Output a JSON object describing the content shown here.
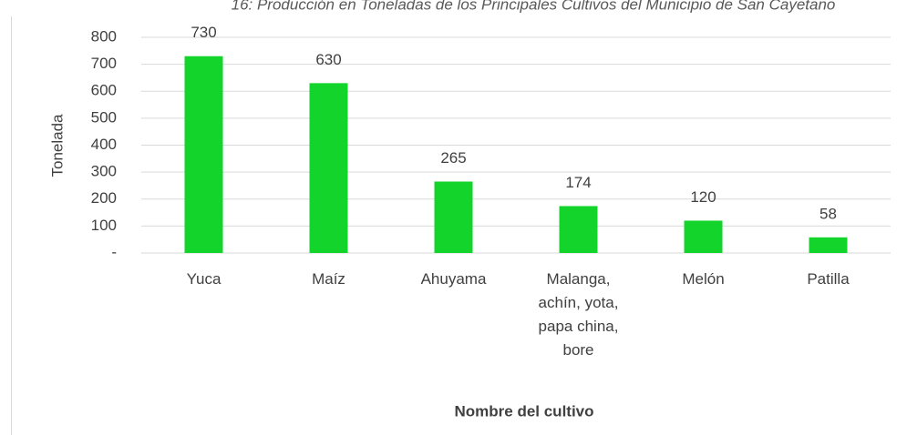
{
  "chart_data": {
    "type": "bar",
    "title": "16: Producción en Toneladas de los Principales Cultivos del Municipio de San Cayetano",
    "categories": [
      "Yuca",
      "Maíz",
      "Ahuyama",
      "Malanga, achín, yota, papa china, bore",
      "Melón",
      "Patilla"
    ],
    "values": [
      730,
      630,
      265,
      174,
      120,
      58
    ],
    "color": "#12d42b",
    "ylabel": "Tonelada",
    "xlabel": "Nombre del cultivo",
    "ylim": [
      0,
      800
    ],
    "yticks": [
      {
        "value": 0,
        "label": "-"
      },
      100,
      200,
      300,
      400,
      500,
      600,
      700,
      800
    ],
    "grid": true
  }
}
